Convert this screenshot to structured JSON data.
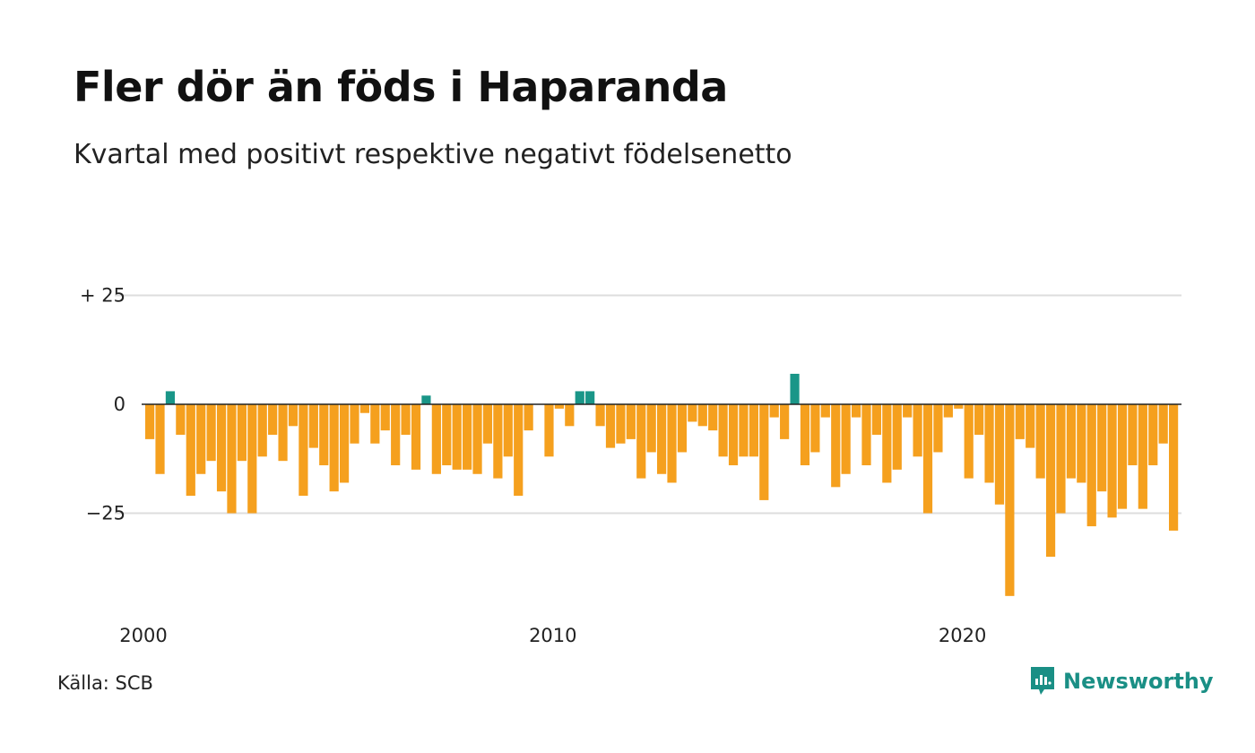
{
  "title": "Fler dör än föds i Haparanda",
  "subtitle": "Kvartal med positivt respektive negativt födelsenetto",
  "source": "Källa: SCB",
  "brand": {
    "name": "Newsworthy",
    "icon": "newsworthy-logo-icon",
    "color": "#1a8f85"
  },
  "colors": {
    "positive": "#1a9688",
    "negative": "#f5a01e",
    "grid": "#dddddd",
    "zero": "#222222"
  },
  "chart_data": {
    "type": "bar",
    "start_year": 2000,
    "periods_per_year": 4,
    "title": "Fler dör än föds i Haparanda",
    "subtitle": "Kvartal med positivt respektive negativt födelsenetto",
    "ylim": [
      -45,
      25
    ],
    "y_ticks": [
      {
        "value": 25,
        "label": "+ 25"
      },
      {
        "value": 0,
        "label": "0"
      },
      {
        "value": -25,
        "label": "−25"
      }
    ],
    "x_ticks": [
      {
        "value": 2000,
        "label": "2000"
      },
      {
        "value": 2010,
        "label": "2010"
      },
      {
        "value": 2020,
        "label": "2020"
      }
    ],
    "grid": true,
    "values": [
      -8,
      -16,
      3,
      -7,
      -21,
      -16,
      -13,
      -20,
      -25,
      -13,
      -25,
      -12,
      -7,
      -13,
      -5,
      -21,
      -10,
      -14,
      -20,
      -18,
      -9,
      -2,
      -9,
      -6,
      -14,
      -7,
      -15,
      2,
      -16,
      -14,
      -15,
      -15,
      -16,
      -9,
      -17,
      -12,
      -21,
      -6,
      0,
      -12,
      -1,
      -5,
      3,
      3,
      -5,
      -10,
      -9,
      -8,
      -17,
      -11,
      -16,
      -18,
      -11,
      -4,
      -5,
      -6,
      -12,
      -14,
      -12,
      -12,
      -22,
      -3,
      -8,
      7,
      -14,
      -11,
      -3,
      -19,
      -16,
      -3,
      -14,
      -7,
      -18,
      -15,
      -3,
      -12,
      -25,
      -11,
      -3,
      -1,
      -17,
      -7,
      -18,
      -23,
      -44,
      -8,
      -10,
      -17,
      -35,
      -25,
      -17,
      -18,
      -28,
      -20,
      -26,
      -24,
      -14,
      -24,
      -14,
      -9,
      -29
    ]
  }
}
